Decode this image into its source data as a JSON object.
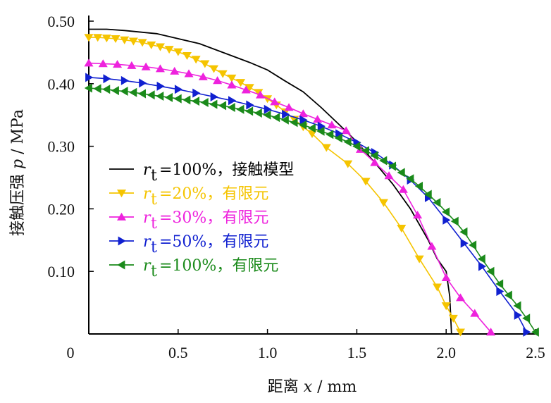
{
  "chart_data": {
    "type": "line",
    "xlabel": {
      "prefix": "距离 ",
      "var": "x",
      "unit": " / mm"
    },
    "ylabel": {
      "prefix": "接触压强 ",
      "var": "p",
      "unit": " / MPa"
    },
    "xlim": [
      0,
      2.5
    ],
    "ylim": [
      0,
      0.5
    ],
    "x_tick_labels": [
      "0",
      "0.5",
      "1.0",
      "1.5",
      "2.0",
      "2.5"
    ],
    "y_ticks": [
      0.1,
      0.2,
      0.3,
      0.4,
      0.5
    ],
    "y_tick_labels": [
      "0.10",
      "0.20",
      "0.30",
      "0.40",
      "0.50"
    ],
    "grid": false,
    "legend_position": "center-left",
    "series": [
      {
        "name": "=100%，接触模型",
        "legend_var": "r",
        "legend_sub": "t",
        "color": "#000000",
        "marker": "none",
        "x": [
          0.0,
          0.1,
          0.2,
          0.38,
          0.5,
          0.62,
          0.75,
          0.9,
          1.0,
          1.1,
          1.2,
          1.3,
          1.4,
          1.5,
          1.6,
          1.7,
          1.8,
          1.9,
          1.95,
          2.0,
          2.02,
          2.03
        ],
        "y": [
          0.487,
          0.487,
          0.485,
          0.48,
          0.472,
          0.464,
          0.45,
          0.434,
          0.422,
          0.404,
          0.387,
          0.362,
          0.335,
          0.307,
          0.274,
          0.24,
          0.2,
          0.15,
          0.12,
          0.1,
          0.06,
          0.0
        ]
      },
      {
        "name": "=20%，有限元",
        "legend_var": "r",
        "legend_sub": "t",
        "color": "#f5c400",
        "marker": "triangle-down",
        "x": [
          0.0,
          0.05,
          0.1,
          0.15,
          0.2,
          0.25,
          0.3,
          0.35,
          0.4,
          0.45,
          0.5,
          0.55,
          0.6,
          0.65,
          0.7,
          0.75,
          0.8,
          0.85,
          0.9,
          0.95,
          1.0,
          1.05,
          1.1,
          1.15,
          1.2,
          1.25,
          1.33,
          1.45,
          1.55,
          1.65,
          1.75,
          1.85,
          1.95,
          2.0,
          2.04,
          2.08
        ],
        "y": [
          0.474,
          0.474,
          0.473,
          0.472,
          0.47,
          0.468,
          0.466,
          0.462,
          0.459,
          0.455,
          0.451,
          0.445,
          0.439,
          0.432,
          0.424,
          0.416,
          0.409,
          0.402,
          0.394,
          0.386,
          0.376,
          0.366,
          0.355,
          0.343,
          0.331,
          0.32,
          0.298,
          0.272,
          0.244,
          0.21,
          0.169,
          0.12,
          0.075,
          0.045,
          0.025,
          0.003
        ]
      },
      {
        "name": "=30%，有限元",
        "legend_var": "r",
        "legend_sub": "t",
        "color": "#ee22dd",
        "marker": "triangle-up",
        "x": [
          0.0,
          0.08,
          0.16,
          0.24,
          0.32,
          0.4,
          0.48,
          0.56,
          0.64,
          0.72,
          0.8,
          0.88,
          0.96,
          1.04,
          1.12,
          1.2,
          1.28,
          1.36,
          1.44,
          1.52,
          1.6,
          1.68,
          1.76,
          1.84,
          1.92,
          2.0,
          2.08,
          2.16,
          2.25
        ],
        "y": [
          0.433,
          0.432,
          0.431,
          0.429,
          0.427,
          0.424,
          0.42,
          0.416,
          0.411,
          0.405,
          0.398,
          0.39,
          0.382,
          0.371,
          0.362,
          0.352,
          0.343,
          0.334,
          0.325,
          0.295,
          0.274,
          0.253,
          0.231,
          0.19,
          0.14,
          0.09,
          0.058,
          0.033,
          0.003
        ]
      },
      {
        "name": "=50%，有限元",
        "legend_var": "r",
        "legend_sub": "t",
        "color": "#1020d0",
        "marker": "triangle-right",
        "x": [
          0.0,
          0.1,
          0.2,
          0.3,
          0.4,
          0.5,
          0.6,
          0.7,
          0.8,
          0.9,
          1.0,
          1.1,
          1.2,
          1.3,
          1.4,
          1.5,
          1.6,
          1.7,
          1.8,
          1.9,
          2.0,
          2.1,
          2.2,
          2.3,
          2.4,
          2.45
        ],
        "y": [
          0.41,
          0.408,
          0.405,
          0.401,
          0.396,
          0.391,
          0.385,
          0.379,
          0.373,
          0.366,
          0.359,
          0.351,
          0.342,
          0.332,
          0.32,
          0.306,
          0.29,
          0.27,
          0.246,
          0.218,
          0.182,
          0.145,
          0.108,
          0.068,
          0.03,
          0.003
        ]
      },
      {
        "name": "=100%，有限元",
        "legend_var": "r",
        "legend_sub": "t",
        "color": "#1a8a1a",
        "marker": "triangle-left",
        "x": [
          0.0,
          0.05,
          0.1,
          0.15,
          0.2,
          0.25,
          0.3,
          0.35,
          0.4,
          0.45,
          0.5,
          0.55,
          0.6,
          0.65,
          0.7,
          0.75,
          0.8,
          0.85,
          0.9,
          0.95,
          1.0,
          1.05,
          1.1,
          1.15,
          1.2,
          1.25,
          1.3,
          1.35,
          1.4,
          1.45,
          1.5,
          1.55,
          1.6,
          1.65,
          1.7,
          1.75,
          1.8,
          1.85,
          1.9,
          1.95,
          2.0,
          2.05,
          2.1,
          2.15,
          2.2,
          2.25,
          2.3,
          2.35,
          2.4,
          2.45,
          2.5
        ],
        "y": [
          0.393,
          0.392,
          0.391,
          0.389,
          0.388,
          0.386,
          0.384,
          0.382,
          0.38,
          0.378,
          0.376,
          0.374,
          0.372,
          0.37,
          0.367,
          0.365,
          0.362,
          0.359,
          0.356,
          0.353,
          0.35,
          0.346,
          0.342,
          0.338,
          0.334,
          0.329,
          0.324,
          0.319,
          0.313,
          0.307,
          0.3,
          0.293,
          0.285,
          0.277,
          0.268,
          0.258,
          0.248,
          0.236,
          0.223,
          0.21,
          0.195,
          0.18,
          0.163,
          0.142,
          0.12,
          0.1,
          0.08,
          0.062,
          0.045,
          0.025,
          0.003
        ]
      }
    ]
  }
}
